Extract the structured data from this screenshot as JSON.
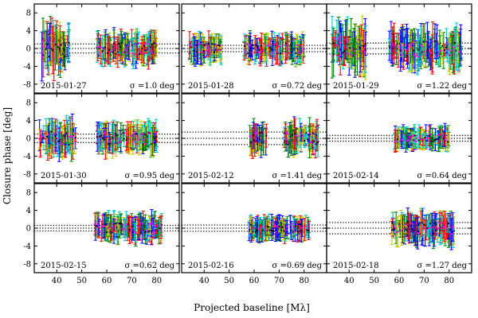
{
  "figure": {
    "ylabel": "Closure phase [deg]",
    "xlabel": "Projected baseline [Mλ]"
  },
  "axes": {
    "x_ticks": [
      40,
      50,
      60,
      70,
      80
    ],
    "y_ticks": [
      -8,
      -4,
      0,
      4,
      8
    ],
    "xlim": [
      31,
      89
    ],
    "ylim": [
      -10,
      10
    ]
  },
  "series_colors": [
    "#c8c800",
    "#00c8c8",
    "#ff0000",
    "#008000",
    "#0000ff",
    "#ff00ff",
    "#000000"
  ],
  "chart_data": [
    {
      "type": "scatter",
      "date": "2015-01-27",
      "sigma": "σ =1.0 deg",
      "dotted_lines_y": [
        -1.0,
        0,
        1.0
      ],
      "clusters": [
        {
          "x": [
            34,
            45
          ],
          "spread": 5
        },
        {
          "x": [
            56,
            80
          ],
          "spread": 3
        }
      ],
      "x_range": [
        34,
        80
      ]
    },
    {
      "type": "scatter",
      "date": "2015-01-28",
      "sigma": "σ =0.72 deg",
      "dotted_lines_y": [
        -0.72,
        0,
        0.72
      ],
      "clusters": [
        {
          "x": [
            34,
            47
          ],
          "spread": 2.5
        },
        {
          "x": [
            56,
            80
          ],
          "spread": 2.5
        }
      ],
      "x_range": [
        34,
        80
      ]
    },
    {
      "type": "scatter",
      "date": "2015-01-29",
      "sigma": "σ =1.22 deg",
      "dotted_lines_y": [
        -1.22,
        0,
        1.22
      ],
      "clusters": [
        {
          "x": [
            33,
            47
          ],
          "spread": 5
        },
        {
          "x": [
            56,
            85
          ],
          "spread": 4
        }
      ],
      "x_range": [
        33,
        85
      ]
    },
    {
      "type": "scatter",
      "date": "2015-01-30",
      "sigma": "σ =0.95 deg",
      "dotted_lines_y": [
        -0.95,
        0,
        0.95
      ],
      "clusters": [
        {
          "x": [
            33,
            48
          ],
          "spread": 3.5
        },
        {
          "x": [
            56,
            80
          ],
          "spread": 3
        }
      ],
      "x_range": [
        33,
        80
      ]
    },
    {
      "type": "scatter",
      "date": "2015-02-12",
      "sigma": "σ =1.41 deg",
      "dotted_lines_y": [
        -1.41,
        0,
        1.41
      ],
      "clusters": [
        {
          "x": [
            58,
            65
          ],
          "spread": 3
        },
        {
          "x": [
            72,
            86
          ],
          "spread": 3
        }
      ],
      "x_range": [
        58,
        86
      ]
    },
    {
      "type": "scatter",
      "date": "2015-02-14",
      "sigma": "σ =0.64 deg",
      "dotted_lines_y": [
        -0.64,
        0,
        0.64
      ],
      "clusters": [
        {
          "x": [
            58,
            80
          ],
          "spread": 2
        }
      ],
      "x_range": [
        58,
        80
      ]
    },
    {
      "type": "scatter",
      "date": "2015-02-15",
      "sigma": "σ =0.62 deg",
      "dotted_lines_y": [
        -0.62,
        0,
        0.62
      ],
      "clusters": [
        {
          "x": [
            55,
            82
          ],
          "spread": 2.5
        }
      ],
      "x_range": [
        55,
        82
      ]
    },
    {
      "type": "scatter",
      "date": "2015-02-16",
      "sigma": "σ =0.69 deg",
      "dotted_lines_y": [
        -0.69,
        0,
        0.69
      ],
      "clusters": [
        {
          "x": [
            58,
            82
          ],
          "spread": 2
        }
      ],
      "x_range": [
        58,
        82
      ]
    },
    {
      "type": "scatter",
      "date": "2015-02-18",
      "sigma": "σ =1.27 deg",
      "dotted_lines_y": [
        -1.27,
        0,
        1.27
      ],
      "clusters": [
        {
          "x": [
            57,
            82
          ],
          "spread": 3
        }
      ],
      "x_range": [
        57,
        82
      ]
    }
  ]
}
